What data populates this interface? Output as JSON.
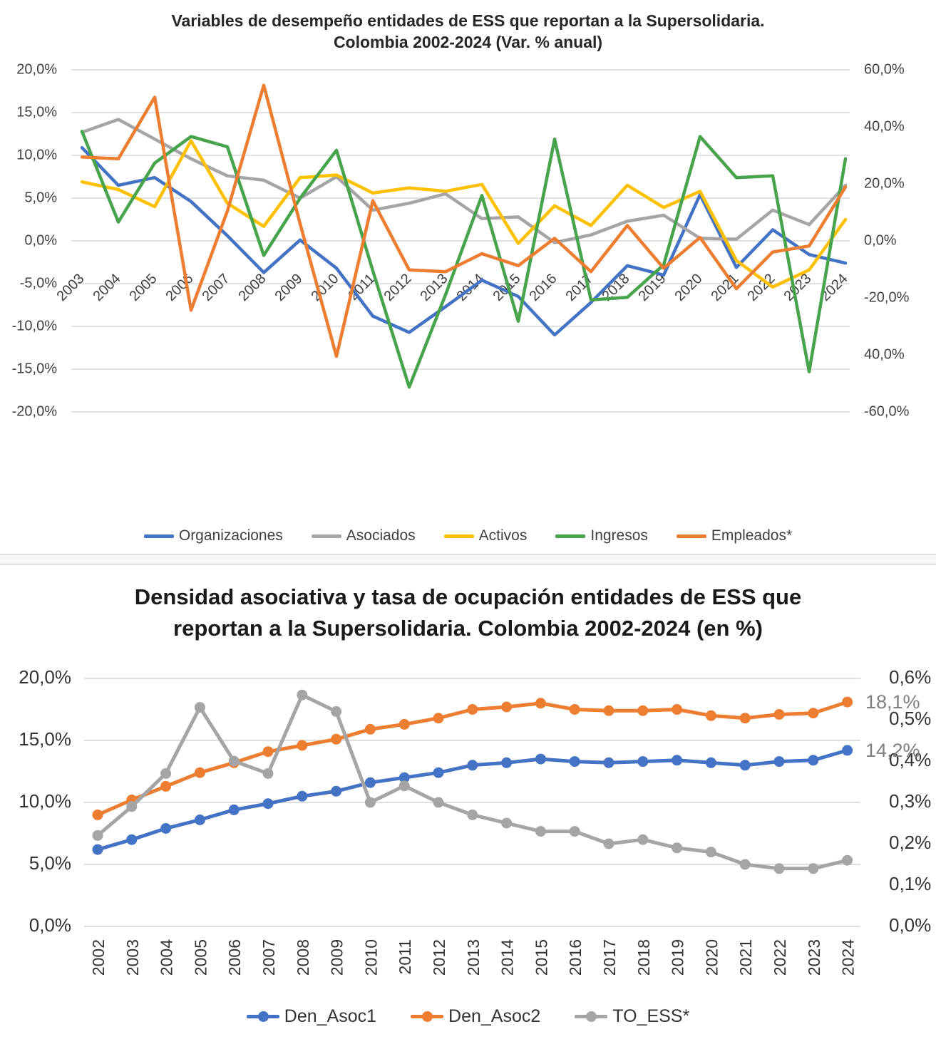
{
  "chart_data": [
    {
      "type": "line",
      "title": "Variables de desempeño entidades de ESS que reportan a la Supersolidaria. Colombia 2002-2024 (Var. % anual)",
      "title_lines": [
        "Variables de desempeño entidades de ESS que reportan a la Supersolidaria.",
        "Colombia  2002-2024 (Var. % anual)"
      ],
      "x": [
        "2003",
        "2004",
        "2005",
        "2006",
        "2007",
        "2008",
        "2009",
        "2010",
        "2011",
        "2012",
        "2013",
        "2014",
        "2015",
        "2016",
        "2017",
        "2018",
        "2019",
        "2020",
        "2021",
        "2022",
        "2023",
        "2024"
      ],
      "left_axis": {
        "labels": [
          "20,0%",
          "15,0%",
          "10,0%",
          "5,0%",
          "0,0%",
          "-5,0%",
          "-10,0%",
          "-15,0%",
          "-20,0%"
        ],
        "range": [
          -20,
          20
        ],
        "grid": true
      },
      "right_axis": {
        "labels": [
          "60,0%",
          "40,0%",
          "20,0%",
          "0,0%",
          "-20,0%",
          "40,0%",
          "-60,0%"
        ],
        "range": [
          -60,
          60
        ]
      },
      "legend_position": "bottom",
      "series": [
        {
          "name": "Organizaciones",
          "color": "#4472C4",
          "axis": "left",
          "values": [
            10.9,
            6.5,
            7.4,
            4.6,
            0.6,
            -3.7,
            0.1,
            -3.2,
            -8.8,
            -10.7,
            -7.7,
            -4.6,
            -6.5,
            -11.0,
            -7.2,
            -2.9,
            -4.0,
            5.4,
            -3.1,
            1.3,
            -1.6,
            -2.6
          ]
        },
        {
          "name": "Asociados",
          "color": "#A5A5A5",
          "axis": "left",
          "values": [
            12.7,
            14.2,
            11.9,
            9.6,
            7.6,
            7.1,
            5.0,
            7.5,
            3.6,
            4.4,
            5.5,
            2.6,
            2.8,
            -0.2,
            0.7,
            2.3,
            3.0,
            0.3,
            0.2,
            3.6,
            1.9,
            6.5
          ]
        },
        {
          "name": "Activos",
          "color": "#FFC000",
          "axis": "left",
          "values": [
            6.9,
            6.0,
            4.0,
            11.7,
            4.4,
            1.7,
            7.4,
            7.7,
            5.6,
            6.2,
            5.8,
            6.6,
            -0.3,
            4.1,
            1.8,
            6.5,
            3.9,
            5.8,
            -2.3,
            -5.4,
            -3.4,
            2.5
          ]
        },
        {
          "name": "Ingresos",
          "color": "#47A34C",
          "axis": "left",
          "values": [
            12.8,
            2.2,
            9.1,
            12.2,
            11.0,
            -1.7,
            5.0,
            10.6,
            -3.5,
            -17.1,
            -6.3,
            5.3,
            -9.4,
            11.9,
            -6.9,
            -6.6,
            -2.8,
            12.2,
            7.4,
            7.6,
            -15.3,
            9.6
          ]
        },
        {
          "name": "Empleados*",
          "color": "#ED7D31",
          "axis": "left",
          "values": [
            9.8,
            9.6,
            16.8,
            -8.1,
            3.5,
            18.2,
            2.0,
            -13.5,
            4.7,
            -3.4,
            -3.6,
            -1.5,
            -2.9,
            0.3,
            -3.6,
            1.8,
            -3.2,
            0.4,
            -5.6,
            -1.3,
            -0.6,
            6.3
          ]
        }
      ]
    },
    {
      "type": "line",
      "markers": true,
      "title": "Densidad asociativa y tasa de ocupación entidades de ESS que reportan a la Supersolidaria. Colombia 2002-2024 (en %)",
      "title_lines": [
        "Densidad asociativa y tasa de ocupación  entidades de ESS que",
        "reportan a la Supersolidaria.  Colombia  2002-2024 (en %)"
      ],
      "x": [
        "2002",
        "2003",
        "2004",
        "2005",
        "2006",
        "2007",
        "2008",
        "2009",
        "2010",
        "2011",
        "2012",
        "2013",
        "2014",
        "2015",
        "2016",
        "2017",
        "2018",
        "2019",
        "2020",
        "2021",
        "2022",
        "2023",
        "2024"
      ],
      "left_axis": {
        "labels": [
          "20,0%",
          "15,0%",
          "10,0%",
          "5,0%",
          "0,0%"
        ],
        "range": [
          0,
          20
        ],
        "grid": true
      },
      "right_axis": {
        "labels": [
          "0,6%",
          "0,5%",
          "0,4%",
          "0,3%",
          "0,2%",
          "0,1%",
          "0,0%"
        ],
        "range": [
          0,
          0.6
        ]
      },
      "legend_position": "bottom",
      "series": [
        {
          "name": "Den_Asoc1",
          "color": "#4472C4",
          "axis": "left",
          "values": [
            6.2,
            7.0,
            7.9,
            8.6,
            9.4,
            9.9,
            10.5,
            10.9,
            11.6,
            12.0,
            12.4,
            13.0,
            13.2,
            13.5,
            13.3,
            13.2,
            13.3,
            13.4,
            13.2,
            13.0,
            13.3,
            13.4,
            14.2
          ]
        },
        {
          "name": "Den_Asoc2",
          "color": "#ED7D31",
          "axis": "left",
          "values": [
            9.0,
            10.2,
            11.3,
            12.4,
            13.2,
            14.1,
            14.6,
            15.1,
            15.9,
            16.3,
            16.8,
            17.5,
            17.7,
            18.0,
            17.5,
            17.4,
            17.4,
            17.5,
            17.0,
            16.8,
            17.1,
            17.2,
            18.1
          ]
        },
        {
          "name": "TO_ESS*",
          "color": "#A5A5A5",
          "axis": "right",
          "values": [
            0.22,
            0.29,
            0.37,
            0.53,
            0.4,
            0.37,
            0.56,
            0.52,
            0.3,
            0.34,
            0.3,
            0.27,
            0.25,
            0.23,
            0.23,
            0.2,
            0.21,
            0.19,
            0.18,
            0.15,
            0.14,
            0.14,
            0.16
          ]
        }
      ],
      "end_labels": [
        {
          "text": "18,1%",
          "value": 18.1,
          "color": "#7f7f7f"
        },
        {
          "text": "14,2%",
          "value": 14.2,
          "color": "#7f7f7f"
        }
      ]
    }
  ]
}
